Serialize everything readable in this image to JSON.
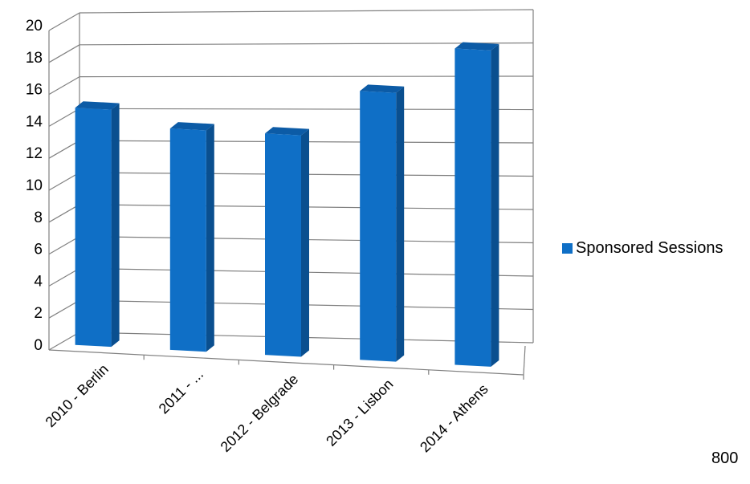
{
  "chart_data": {
    "type": "bar",
    "categories": [
      "2010 - Berlin",
      "2011 - ...",
      "2012 - Belgrade",
      "2013 - Lisbon",
      "2014 - Athens"
    ],
    "series": [
      {
        "name": "Sponsored Sessions",
        "values": [
          15,
          14,
          14,
          17,
          20
        ]
      }
    ],
    "ylim": [
      0,
      20
    ],
    "yticks": [
      0,
      2,
      4,
      6,
      8,
      10,
      12,
      14,
      16,
      18,
      20
    ],
    "grid": true,
    "legend_position": "right",
    "colors": {
      "bar": "#0F6FC6",
      "bar_side": "#0A4F8F",
      "bar_top": "#0C5BA6",
      "grid": "#808080"
    }
  },
  "footer_number": "800"
}
